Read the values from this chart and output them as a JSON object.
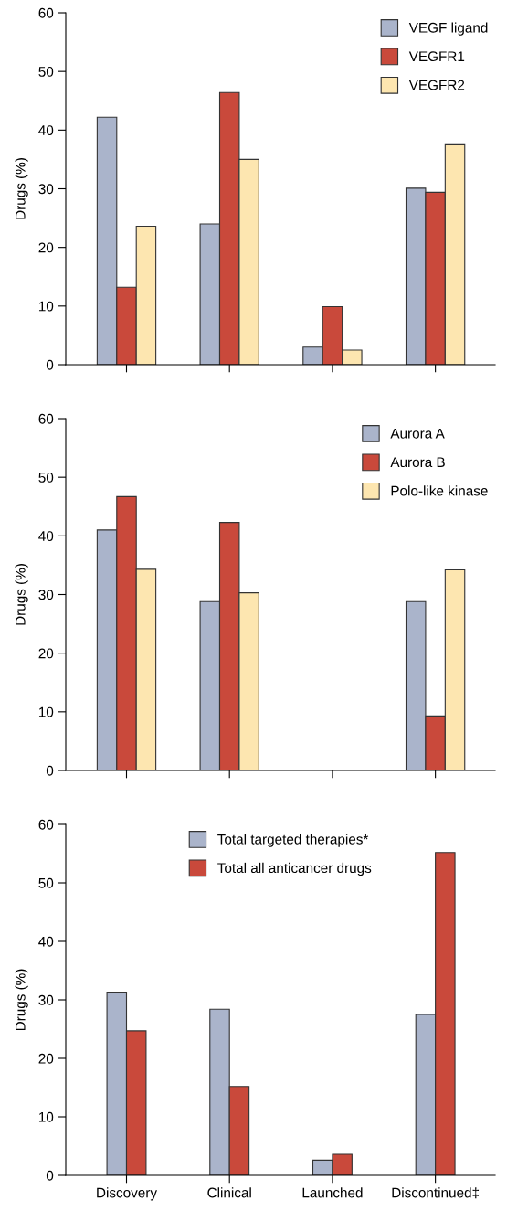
{
  "chart_data": [
    {
      "type": "bar",
      "ylabel": "Drugs (%)",
      "categories": [
        null,
        null,
        null,
        null
      ],
      "ylim": [
        0,
        60
      ],
      "yticks": [
        0,
        10,
        20,
        30,
        40,
        50,
        60
      ],
      "grid": false,
      "legend": "top right",
      "tick_labels": "y",
      "series": [
        {
          "name": "VEGF ligand",
          "color": "#aab4cb",
          "values": [
            42.2,
            24,
            3,
            30.1
          ]
        },
        {
          "name": "VEGFR1",
          "color": "#c9493b",
          "values": [
            13.2,
            46.4,
            9.9,
            29.4
          ]
        },
        {
          "name": "VEGFR2",
          "color": "#fde6b0",
          "values": [
            23.6,
            35,
            2.5,
            37.5
          ]
        }
      ]
    },
    {
      "type": "bar",
      "ylabel": "Drugs (%)",
      "categories": [
        null,
        null,
        null,
        null
      ],
      "ylim": [
        0,
        60
      ],
      "yticks": [
        0,
        10,
        20,
        30,
        40,
        50,
        60
      ],
      "grid": false,
      "legend": "top right",
      "tick_labels": "y",
      "series": [
        {
          "name": "Aurora A",
          "color": "#aab4cb",
          "values": [
            41,
            28.8,
            null,
            28.8
          ]
        },
        {
          "name": "Aurora B",
          "color": "#c9493b",
          "values": [
            46.7,
            42.3,
            null,
            9.3
          ]
        },
        {
          "name": "Polo-like kinase",
          "color": "#fde6b0",
          "values": [
            34.3,
            30.3,
            null,
            34.2
          ]
        }
      ]
    },
    {
      "type": "bar",
      "ylabel": "Drugs (%)",
      "categories": [
        "Discovery",
        "Clinical",
        "Launched",
        "Discontinued‡"
      ],
      "ylim": [
        0,
        60
      ],
      "yticks": [
        0,
        10,
        20,
        30,
        40,
        50,
        60
      ],
      "grid": false,
      "legend": "top",
      "series": [
        {
          "name": "Total targeted therapies*",
          "color": "#aab4cb",
          "values": [
            31.3,
            28.4,
            2.6,
            27.5
          ]
        },
        {
          "name": "Total all anticancer drugs",
          "color": "#c9493b",
          "values": [
            24.7,
            15.2,
            3.6,
            55.2
          ]
        }
      ]
    }
  ]
}
